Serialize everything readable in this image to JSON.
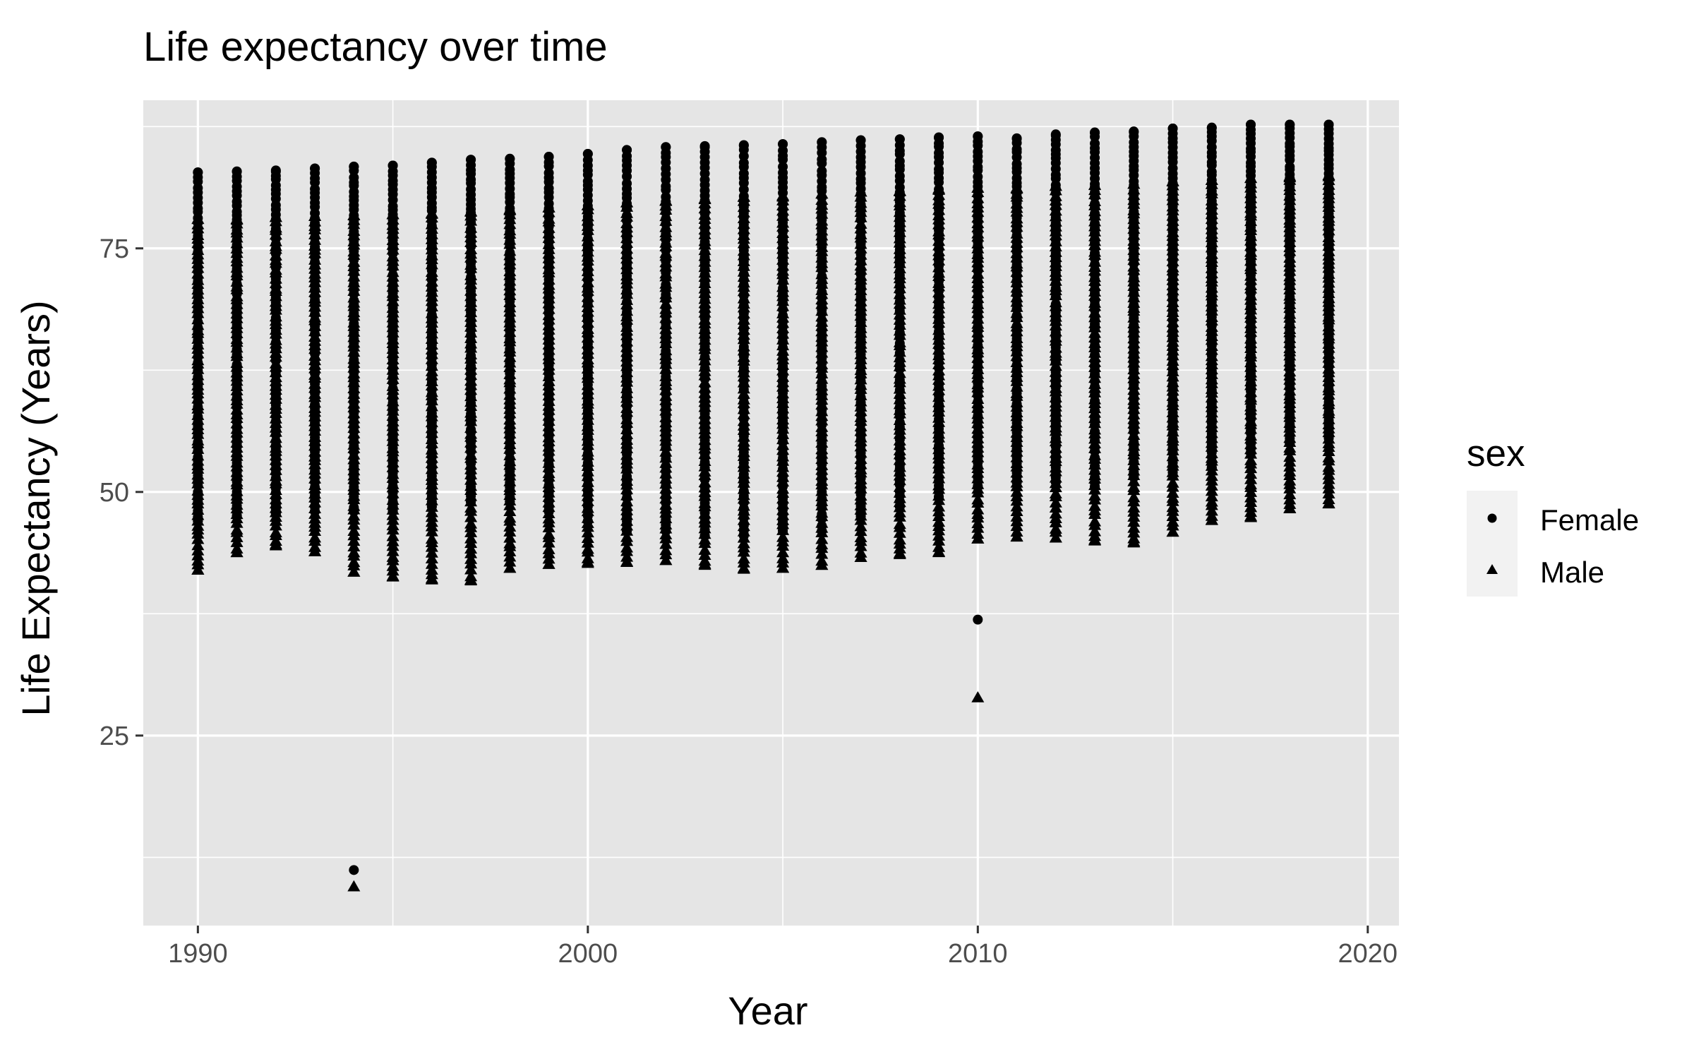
{
  "chart_data": {
    "type": "scatter",
    "title": "Life expectancy over time",
    "xlabel": "Year",
    "ylabel": "Life Expectancy (Years)",
    "xlim": [
      1988.6,
      2020.8
    ],
    "ylim": [
      5.5,
      90.2
    ],
    "x_ticks": [
      1990,
      2000,
      2010,
      2020
    ],
    "y_ticks": [
      25,
      50,
      75
    ],
    "x_tick_labels": [
      "1990",
      "2000",
      "2010",
      "2020"
    ],
    "y_tick_labels": [
      "25",
      "50",
      "75"
    ],
    "grid": true,
    "background": "#e5e5e5",
    "point_color": "#000000",
    "legend": {
      "title": "sex",
      "placement": "right",
      "entries": [
        {
          "label": "Female",
          "shape": "circle"
        },
        {
          "label": "Male",
          "shape": "triangle"
        }
      ]
    },
    "series": [
      {
        "name": "Female",
        "shape": "circle",
        "columns": [
          {
            "x": 1990,
            "min": 47.0,
            "max": 82.8,
            "extra": []
          },
          {
            "x": 1991,
            "min": 47.5,
            "max": 82.9,
            "extra": []
          },
          {
            "x": 1992,
            "min": 47.8,
            "max": 83.0,
            "extra": []
          },
          {
            "x": 1993,
            "min": 48.0,
            "max": 83.2,
            "extra": []
          },
          {
            "x": 1994,
            "min": 48.0,
            "max": 83.4,
            "extra": [
              11.2
            ]
          },
          {
            "x": 1995,
            "min": 48.0,
            "max": 83.5,
            "extra": []
          },
          {
            "x": 1996,
            "min": 48.5,
            "max": 83.8,
            "extra": []
          },
          {
            "x": 1997,
            "min": 49.0,
            "max": 84.1,
            "extra": []
          },
          {
            "x": 1998,
            "min": 49.0,
            "max": 84.2,
            "extra": []
          },
          {
            "x": 1999,
            "min": 48.0,
            "max": 84.4,
            "extra": []
          },
          {
            "x": 2000,
            "min": 47.0,
            "max": 84.7,
            "extra": []
          },
          {
            "x": 2001,
            "min": 46.0,
            "max": 85.1,
            "extra": []
          },
          {
            "x": 2002,
            "min": 46.0,
            "max": 85.4,
            "extra": []
          },
          {
            "x": 2003,
            "min": 45.5,
            "max": 85.5,
            "extra": []
          },
          {
            "x": 2004,
            "min": 45.5,
            "max": 85.6,
            "extra": []
          },
          {
            "x": 2005,
            "min": 46.0,
            "max": 85.7,
            "extra": []
          },
          {
            "x": 2006,
            "min": 46.0,
            "max": 85.9,
            "extra": []
          },
          {
            "x": 2007,
            "min": 47.5,
            "max": 86.1,
            "extra": []
          },
          {
            "x": 2008,
            "min": 48.5,
            "max": 86.2,
            "extra": []
          },
          {
            "x": 2009,
            "min": 49.5,
            "max": 86.4,
            "extra": []
          },
          {
            "x": 2010,
            "min": 50.5,
            "max": 86.5,
            "extra": [
              36.9
            ]
          },
          {
            "x": 2011,
            "min": 51.0,
            "max": 86.3,
            "extra": []
          },
          {
            "x": 2012,
            "min": 51.0,
            "max": 86.7,
            "extra": []
          },
          {
            "x": 2013,
            "min": 50.5,
            "max": 86.9,
            "extra": []
          },
          {
            "x": 2014,
            "min": 51.5,
            "max": 87.0,
            "extra": []
          },
          {
            "x": 2015,
            "min": 52.0,
            "max": 87.3,
            "extra": []
          },
          {
            "x": 2016,
            "min": 52.5,
            "max": 87.4,
            "extra": []
          },
          {
            "x": 2017,
            "min": 54.0,
            "max": 87.7,
            "extra": []
          },
          {
            "x": 2018,
            "min": 55.0,
            "max": 87.7,
            "extra": []
          },
          {
            "x": 2019,
            "min": 55.5,
            "max": 87.7,
            "extra": []
          }
        ]
      },
      {
        "name": "Male",
        "shape": "triangle",
        "columns": [
          {
            "x": 1990,
            "min": 42.0,
            "max": 78.0,
            "extra": []
          },
          {
            "x": 1991,
            "min": 43.8,
            "max": 78.0,
            "extra": []
          },
          {
            "x": 1992,
            "min": 44.5,
            "max": 78.2,
            "extra": []
          },
          {
            "x": 1993,
            "min": 43.9,
            "max": 78.3,
            "extra": []
          },
          {
            "x": 1994,
            "min": 41.8,
            "max": 78.4,
            "extra": [
              9.5
            ]
          },
          {
            "x": 1995,
            "min": 41.3,
            "max": 78.5,
            "extra": []
          },
          {
            "x": 1996,
            "min": 41.0,
            "max": 78.6,
            "extra": []
          },
          {
            "x": 1997,
            "min": 40.9,
            "max": 78.8,
            "extra": []
          },
          {
            "x": 1998,
            "min": 42.2,
            "max": 79.0,
            "extra": []
          },
          {
            "x": 1999,
            "min": 42.6,
            "max": 79.2,
            "extra": []
          },
          {
            "x": 2000,
            "min": 42.7,
            "max": 79.4,
            "extra": []
          },
          {
            "x": 2001,
            "min": 42.8,
            "max": 79.7,
            "extra": []
          },
          {
            "x": 2002,
            "min": 43.0,
            "max": 79.9,
            "extra": []
          },
          {
            "x": 2003,
            "min": 42.5,
            "max": 80.1,
            "extra": []
          },
          {
            "x": 2004,
            "min": 42.1,
            "max": 80.3,
            "extra": []
          },
          {
            "x": 2005,
            "min": 42.2,
            "max": 80.4,
            "extra": []
          },
          {
            "x": 2006,
            "min": 42.5,
            "max": 80.6,
            "extra": []
          },
          {
            "x": 2007,
            "min": 43.3,
            "max": 80.8,
            "extra": []
          },
          {
            "x": 2008,
            "min": 43.6,
            "max": 80.9,
            "extra": []
          },
          {
            "x": 2009,
            "min": 43.8,
            "max": 81.1,
            "extra": []
          },
          {
            "x": 2010,
            "min": 45.2,
            "max": 81.2,
            "extra": [
              28.9
            ]
          },
          {
            "x": 2011,
            "min": 45.4,
            "max": 81.2,
            "extra": []
          },
          {
            "x": 2012,
            "min": 45.3,
            "max": 81.4,
            "extra": []
          },
          {
            "x": 2013,
            "min": 45.0,
            "max": 81.5,
            "extra": []
          },
          {
            "x": 2014,
            "min": 44.8,
            "max": 81.6,
            "extra": []
          },
          {
            "x": 2015,
            "min": 45.9,
            "max": 81.9,
            "extra": []
          },
          {
            "x": 2016,
            "min": 47.1,
            "max": 82.0,
            "extra": []
          },
          {
            "x": 2017,
            "min": 47.4,
            "max": 82.2,
            "extra": []
          },
          {
            "x": 2018,
            "min": 48.3,
            "max": 82.4,
            "extra": []
          },
          {
            "x": 2019,
            "min": 48.8,
            "max": 82.5,
            "extra": []
          }
        ]
      }
    ]
  }
}
